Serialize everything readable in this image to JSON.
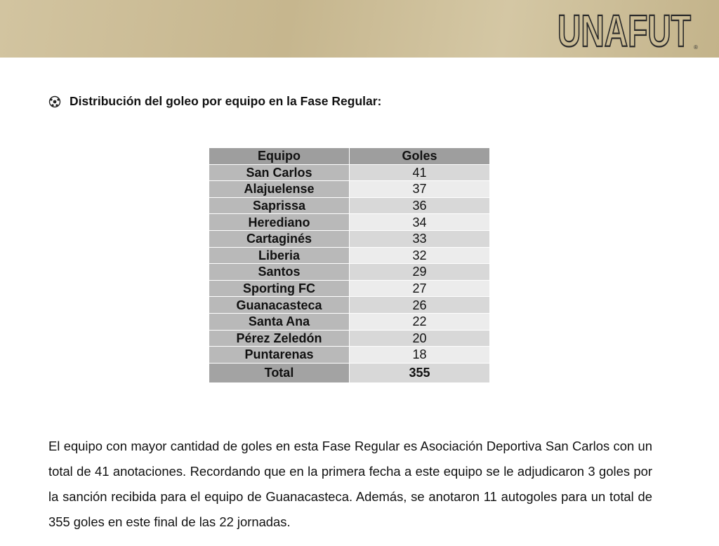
{
  "header": {
    "logo": "UNAFUT",
    "logo_mark": "®"
  },
  "heading": "Distribución del goleo por equipo en la Fase Regular:",
  "table": {
    "columns": [
      "Equipo",
      "Goles"
    ],
    "rows": [
      [
        "San Carlos",
        41
      ],
      [
        "Alajuelense",
        37
      ],
      [
        "Saprissa",
        36
      ],
      [
        "Herediano",
        34
      ],
      [
        "Cartaginés",
        33
      ],
      [
        "Liberia",
        32
      ],
      [
        "Santos",
        29
      ],
      [
        "Sporting FC",
        27
      ],
      [
        "Guanacasteca",
        26
      ],
      [
        "Santa Ana",
        22
      ],
      [
        "Pérez Zeledón",
        20
      ],
      [
        "Puntarenas",
        18
      ]
    ],
    "total": [
      "Total",
      355
    ]
  },
  "paragraph": "El equipo con mayor cantidad de goles en esta Fase Regular es Asociación Deportiva San Carlos con un total de 41 anotaciones. Recordando que en la primera fecha a este equipo se le adjudicaron 3 goles por la sanción recibida para el equipo de Guanacasteca. Además, se anotaron 11 autogoles para un total de 355 goles en este final de las 22 jornadas."
}
